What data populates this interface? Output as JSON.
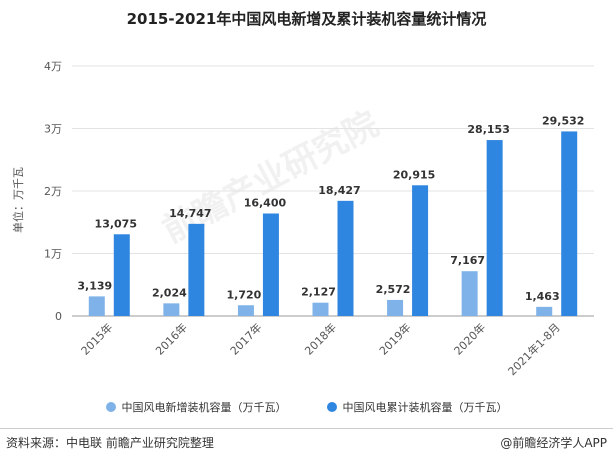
{
  "chart_data": {
    "type": "bar",
    "title": "2015-2021年中国风电新增及累计装机容量统计情况",
    "ylabel": "单位：万千瓦",
    "yticks": [
      "0",
      "1万",
      "2万",
      "3万",
      "4万"
    ],
    "ylim": [
      0,
      40000
    ],
    "grid": true,
    "legend_position": "bottom",
    "categories": [
      "2015年",
      "2016年",
      "2017年",
      "2018年",
      "2019年",
      "2020年",
      "2021年1-8月"
    ],
    "series": [
      {
        "name": "中国风电新增装机容量（万千瓦）",
        "color": "#7fb2e8",
        "values": [
          3139,
          2024,
          1720,
          2127,
          2572,
          7167,
          1463
        ],
        "labels": [
          "3,139",
          "2,024",
          "1,720",
          "2,127",
          "2,572",
          "7,167",
          "1,463"
        ]
      },
      {
        "name": "中国风电累计装机容量（万千瓦）",
        "color": "#2f86e0",
        "values": [
          13075,
          14747,
          16400,
          18427,
          20915,
          28153,
          29532
        ],
        "labels": [
          "13,075",
          "14,747",
          "16,400",
          "18,427",
          "20,915",
          "28,153",
          "29,532"
        ]
      }
    ]
  },
  "footer": {
    "source": "资料来源：中电联 前瞻产业研究院整理",
    "brand": "@前瞻经济学人APP"
  },
  "watermark": "前瞻产业研究院"
}
